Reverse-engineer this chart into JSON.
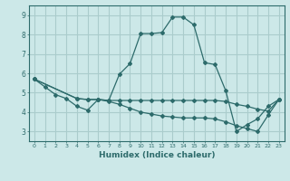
{
  "xlabel": "Humidex (Indice chaleur)",
  "ylabel": "",
  "bg_color": "#cce8e8",
  "grid_color": "#aacccc",
  "line_color": "#2d6b6b",
  "xlim": [
    -0.5,
    23.5
  ],
  "ylim": [
    2.5,
    9.5
  ],
  "xticks": [
    0,
    1,
    2,
    3,
    4,
    5,
    6,
    7,
    8,
    9,
    10,
    11,
    12,
    13,
    14,
    15,
    16,
    17,
    18,
    19,
    20,
    21,
    22,
    23
  ],
  "yticks": [
    3,
    4,
    5,
    6,
    7,
    8,
    9
  ],
  "line1_x": [
    0,
    1,
    2,
    3,
    4,
    5,
    6,
    7,
    8,
    9,
    10,
    11,
    12,
    13,
    14,
    15,
    16,
    17,
    18,
    19,
    20,
    21,
    22,
    23
  ],
  "line1_y": [
    5.7,
    5.3,
    4.9,
    4.7,
    4.3,
    4.1,
    4.65,
    4.6,
    5.95,
    6.5,
    8.05,
    8.05,
    8.1,
    8.9,
    8.9,
    8.5,
    6.55,
    6.45,
    5.1,
    3.0,
    3.35,
    3.65,
    4.3,
    4.65
  ],
  "line2_x": [
    0,
    4,
    5,
    6,
    7,
    8,
    9,
    10,
    11,
    12,
    13,
    14,
    15,
    16,
    17,
    18,
    19,
    20,
    21,
    22,
    23
  ],
  "line2_y": [
    5.7,
    4.7,
    4.65,
    4.65,
    4.6,
    4.6,
    4.6,
    4.6,
    4.6,
    4.6,
    4.6,
    4.6,
    4.6,
    4.6,
    4.6,
    4.55,
    4.4,
    4.3,
    4.15,
    4.05,
    4.65
  ],
  "line3_x": [
    0,
    4,
    5,
    6,
    7,
    8,
    9,
    10,
    11,
    12,
    13,
    14,
    15,
    16,
    17,
    18,
    19,
    20,
    21,
    22,
    23
  ],
  "line3_y": [
    5.7,
    4.7,
    4.65,
    4.65,
    4.55,
    4.4,
    4.2,
    4.0,
    3.9,
    3.8,
    3.75,
    3.7,
    3.7,
    3.7,
    3.65,
    3.5,
    3.3,
    3.15,
    3.0,
    3.85,
    4.65
  ]
}
